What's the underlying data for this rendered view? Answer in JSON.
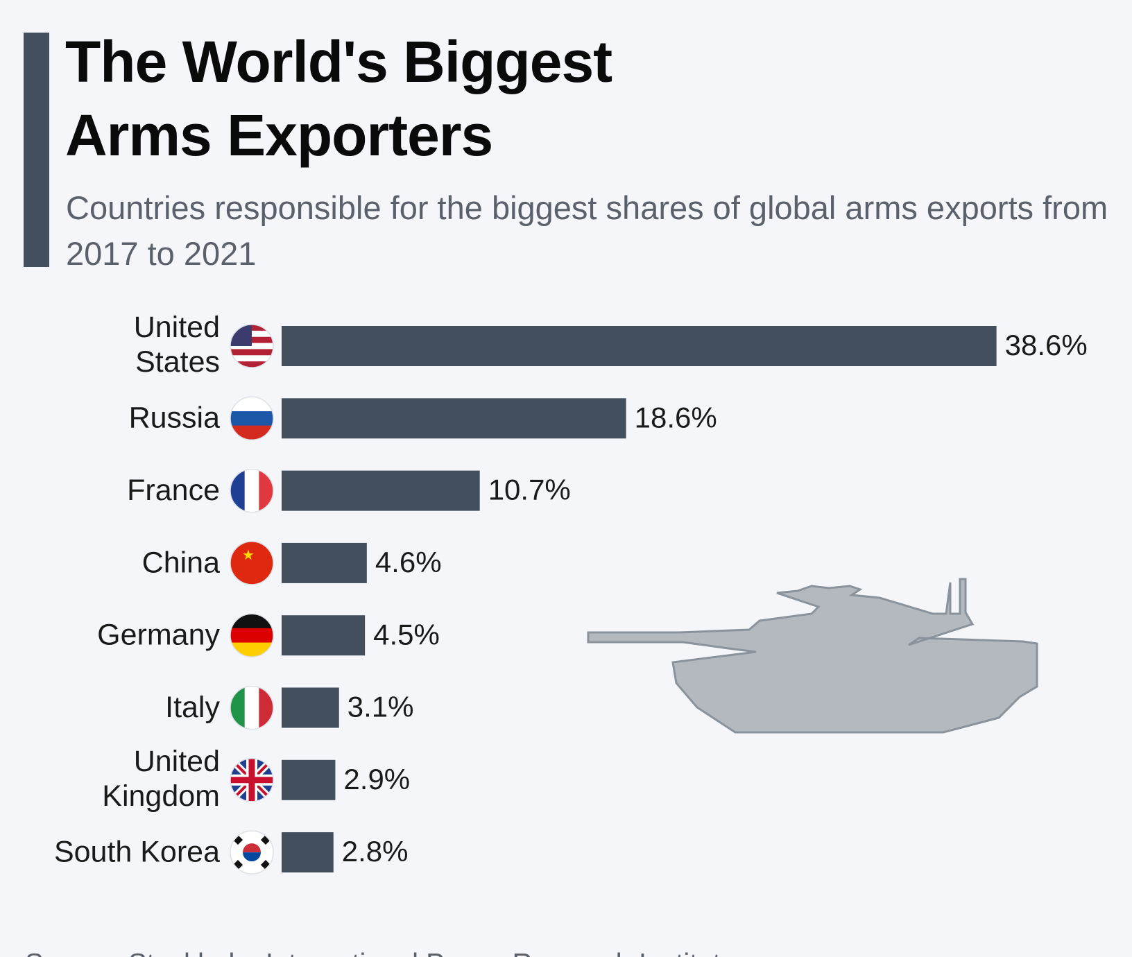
{
  "chart_data": {
    "type": "bar",
    "orientation": "horizontal",
    "title": "The World's Biggest Arms Exporters",
    "subtitle": "Countries responsible for the biggest shares of global arms exports from 2017 to 2021",
    "categories": [
      "United States",
      "Russia",
      "France",
      "China",
      "Germany",
      "Italy",
      "United Kingdom",
      "South Korea"
    ],
    "values": [
      38.6,
      18.6,
      10.7,
      4.6,
      4.5,
      3.1,
      2.9,
      2.8
    ],
    "value_labels": [
      "38.6%",
      "18.6%",
      "10.7%",
      "4.6%",
      "4.5%",
      "3.1%",
      "2.9%",
      "2.8%"
    ],
    "color": "#444f5e",
    "source": "Source: Stockholm International Peace Research Institute"
  }
}
